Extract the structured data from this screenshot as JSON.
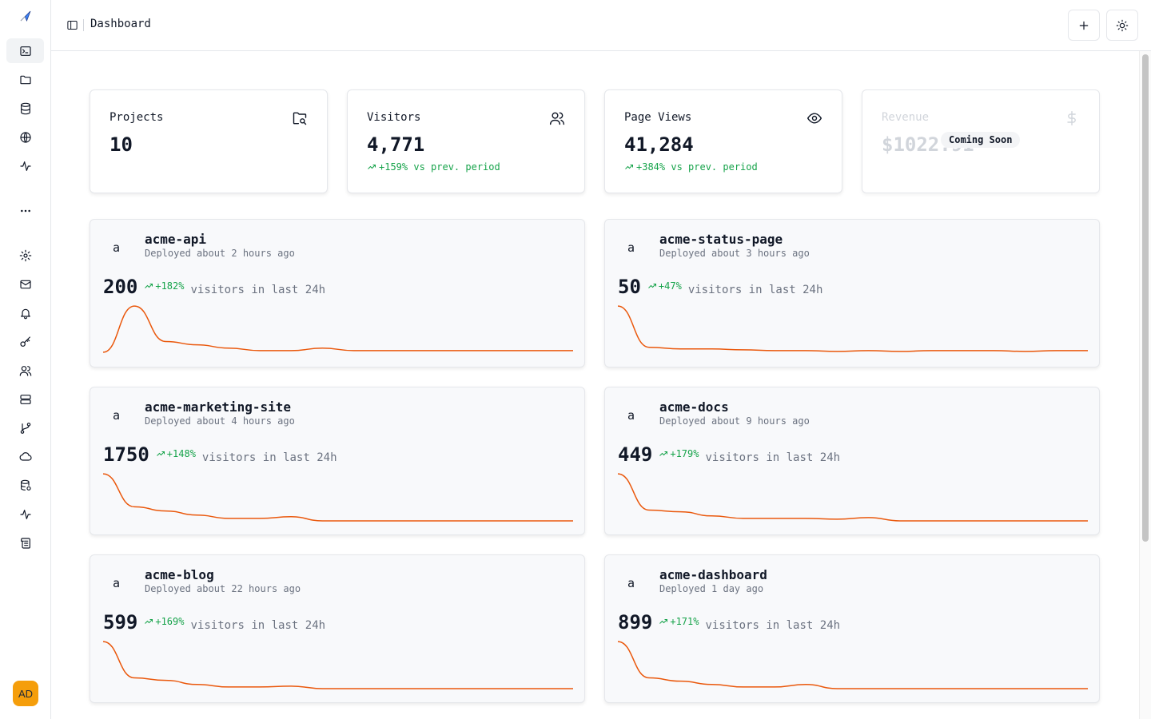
{
  "header": {
    "title": "Dashboard"
  },
  "user": {
    "initials": "AD"
  },
  "colors": {
    "accent": "#ea580c",
    "positive": "#16a34a",
    "avatar": "#f59e0b"
  },
  "sidebar": {
    "items": [
      {
        "name": "terminal-icon",
        "active": true
      },
      {
        "name": "folder-icon",
        "active": false
      },
      {
        "name": "database-icon",
        "active": false
      },
      {
        "name": "globe-icon",
        "active": false
      },
      {
        "name": "activity-icon",
        "active": false
      },
      {
        "name": "more-icon",
        "active": false
      },
      {
        "name": "settings-icon",
        "active": false
      },
      {
        "name": "mail-icon",
        "active": false
      },
      {
        "name": "bell-icon",
        "active": false
      },
      {
        "name": "key-icon",
        "active": false
      },
      {
        "name": "users-icon",
        "active": false
      },
      {
        "name": "server-icon",
        "active": false
      },
      {
        "name": "git-branch-icon",
        "active": false
      },
      {
        "name": "cloud-icon",
        "active": false
      },
      {
        "name": "database-settings-icon",
        "active": false
      },
      {
        "name": "pulse-icon",
        "active": false
      },
      {
        "name": "scroll-icon",
        "active": false
      }
    ]
  },
  "stats": [
    {
      "label": "Projects",
      "value": "10",
      "change": "",
      "icon": "folder-search-icon"
    },
    {
      "label": "Visitors",
      "value": "4,771",
      "change": "+159% vs prev. period",
      "icon": "users-icon"
    },
    {
      "label": "Page Views",
      "value": "41,284",
      "change": "+384% vs prev. period",
      "icon": "eye-icon"
    },
    {
      "label": "Revenue",
      "value": "$1022.91",
      "badge": "Coming Soon",
      "icon": "dollar-icon"
    }
  ],
  "projects": [
    {
      "avatar": "a",
      "name": "acme-api",
      "deployed": "Deployed about 2 hours ago",
      "visitors": "200",
      "change": "+182%",
      "caption": "visitors in last 24h",
      "series": [
        2,
        58,
        15,
        11,
        7,
        4,
        4,
        7,
        4,
        4,
        4,
        4,
        4,
        4,
        4,
        4
      ]
    },
    {
      "avatar": "a",
      "name": "acme-status-page",
      "deployed": "Deployed about 3 hours ago",
      "visitors": "50",
      "change": "+47%",
      "caption": "visitors in last 24h",
      "series": [
        58,
        8,
        6,
        6,
        5,
        4,
        4,
        3,
        4,
        3,
        4,
        4,
        4,
        3,
        4,
        4
      ]
    },
    {
      "avatar": "a",
      "name": "acme-marketing-site",
      "deployed": "Deployed about 4 hours ago",
      "visitors": "1750",
      "change": "+148%",
      "caption": "visitors in last 24h",
      "series": [
        58,
        18,
        13,
        8,
        4,
        4,
        6,
        1,
        1,
        1,
        1,
        1,
        1,
        1,
        1,
        1
      ]
    },
    {
      "avatar": "a",
      "name": "acme-docs",
      "deployed": "Deployed about 9 hours ago",
      "visitors": "449",
      "change": "+179%",
      "caption": "visitors in last 24h",
      "series": [
        58,
        14,
        12,
        7,
        4,
        4,
        4,
        3,
        5,
        1,
        1,
        1,
        1,
        1,
        1,
        1
      ]
    },
    {
      "avatar": "a",
      "name": "acme-blog",
      "deployed": "Deployed about 22 hours ago",
      "visitors": "599",
      "change": "+169%",
      "caption": "visitors in last 24h",
      "series": [
        58,
        14,
        11,
        6,
        3,
        3,
        4,
        1,
        1,
        1,
        1,
        1,
        1,
        1,
        1,
        1
      ]
    },
    {
      "avatar": "a",
      "name": "acme-dashboard",
      "deployed": "Deployed 1 day ago",
      "visitors": "899",
      "change": "+171%",
      "caption": "visitors in last 24h",
      "series": [
        58,
        14,
        10,
        6,
        3,
        3,
        6,
        1,
        1,
        1,
        1,
        1,
        1,
        1,
        1,
        1
      ]
    }
  ]
}
